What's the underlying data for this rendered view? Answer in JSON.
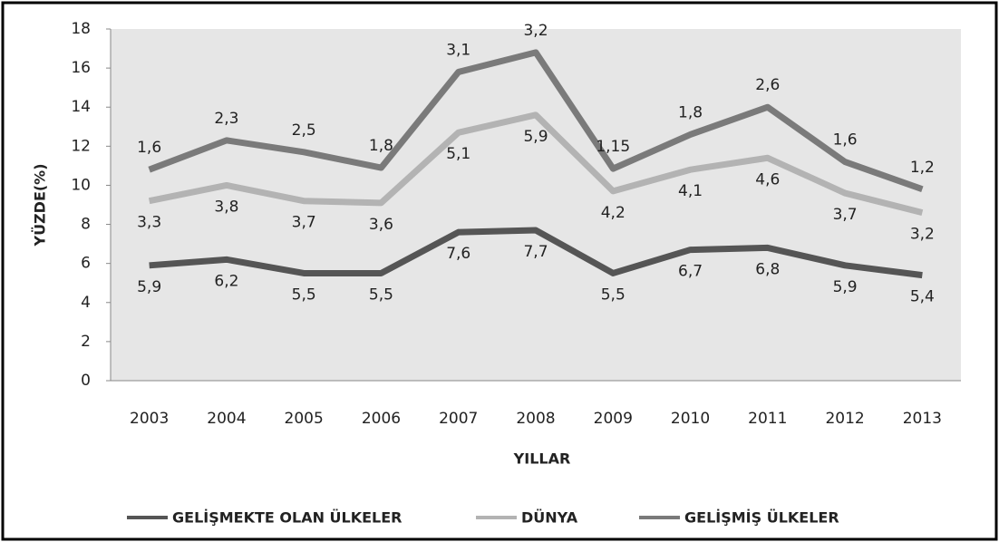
{
  "chart_data": {
    "type": "line",
    "stacked": true,
    "xlabel": "YILLAR",
    "ylabel": "YÜZDE(%)",
    "categories": [
      "2003",
      "2004",
      "2005",
      "2006",
      "2007",
      "2008",
      "2009",
      "2010",
      "2011",
      "2012",
      "2013"
    ],
    "series": [
      {
        "name": "GELİŞMEKTE OLAN ÜLKELER",
        "color": "#555555",
        "values": [
          5.9,
          6.2,
          5.5,
          5.5,
          7.6,
          7.7,
          5.5,
          6.7,
          6.8,
          5.9,
          5.4
        ],
        "value_labels": [
          "5,9",
          "6,2",
          "5,5",
          "5,5",
          "7,6",
          "7,7",
          "5,5",
          "6,7",
          "6,8",
          "5,9",
          "5,4"
        ]
      },
      {
        "name": "DÜNYA",
        "color": "#b3b3b3",
        "values": [
          3.3,
          3.8,
          3.7,
          3.6,
          5.1,
          5.9,
          4.2,
          4.1,
          4.6,
          3.7,
          3.2
        ],
        "value_labels": [
          "3,3",
          "3,8",
          "3,7",
          "3,6",
          "5,1",
          "5,9",
          "4,2",
          "4,1",
          "4,6",
          "3,7",
          "3,2"
        ]
      },
      {
        "name": "GELİŞMİŞ ÜLKELER",
        "color": "#7a7a7a",
        "values": [
          1.6,
          2.3,
          2.5,
          1.8,
          3.1,
          3.2,
          1.15,
          1.8,
          2.6,
          1.6,
          1.2
        ],
        "value_labels": [
          "1,6",
          "2,3",
          "2,5",
          "1,8",
          "3,1",
          "3,2",
          "1,15",
          "1,8",
          "2,6",
          "1,6",
          "1,2"
        ]
      }
    ],
    "ylim": [
      0,
      18
    ],
    "yticks": [
      0,
      2,
      4,
      6,
      8,
      10,
      12,
      14,
      16,
      18
    ],
    "grid": false,
    "legend": "bottom"
  }
}
